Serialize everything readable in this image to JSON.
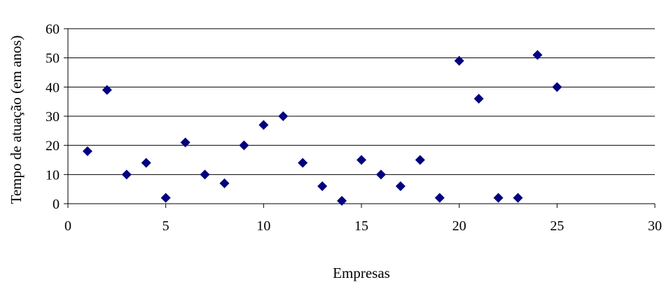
{
  "chart_data": {
    "type": "scatter",
    "title": "",
    "xlabel": "Empresas",
    "ylabel": "Tempo de atuação (em anos)",
    "xlim": [
      0,
      30
    ],
    "ylim": [
      0,
      60
    ],
    "x_ticks": [
      0,
      5,
      10,
      15,
      20,
      25,
      30
    ],
    "y_ticks": [
      0,
      10,
      20,
      30,
      40,
      50,
      60
    ],
    "grid": "horizontal",
    "legend": "none",
    "marker": "diamond",
    "marker_color": "#000080",
    "series": [
      {
        "x": [
          1,
          2,
          3,
          4,
          5,
          6,
          7,
          8,
          9,
          10,
          11,
          12,
          13,
          14,
          15,
          16,
          17,
          18,
          19,
          20,
          21,
          22,
          23,
          24,
          25
        ],
        "y": [
          18,
          39,
          10,
          14,
          2,
          21,
          10,
          7,
          20,
          27,
          30,
          14,
          6,
          1,
          15,
          10,
          6,
          15,
          2,
          49,
          36,
          2,
          2,
          51,
          40
        ]
      }
    ]
  }
}
